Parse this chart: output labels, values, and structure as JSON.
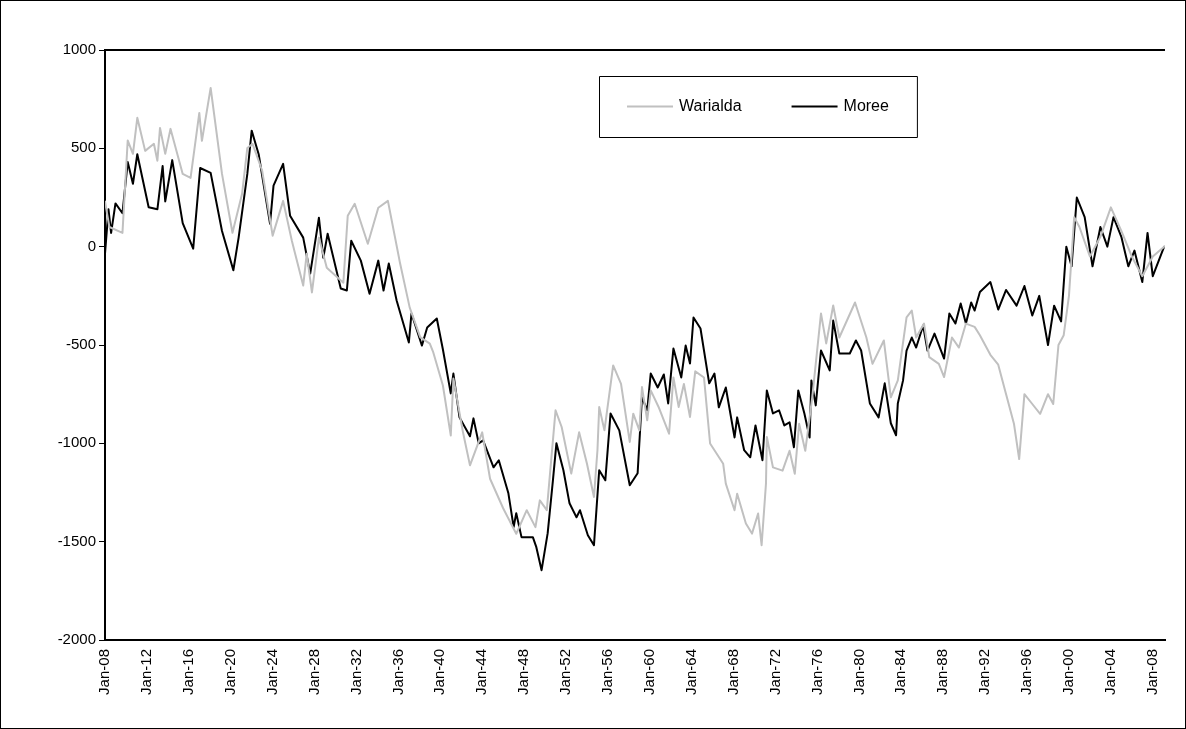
{
  "chart_data": {
    "type": "line",
    "legend": "top",
    "grid": false,
    "marker": "none",
    "line_style": "solid",
    "xlim": [
      "1908-01",
      "2009-03"
    ],
    "ylim": [
      -2000,
      1000
    ],
    "yticks": [
      -2000,
      -1500,
      -1000,
      -500,
      0,
      500,
      1000
    ],
    "xticks": [
      {
        "value": "1908-01",
        "label": "Jan-08"
      },
      {
        "value": "1912-01",
        "label": "Jan-12"
      },
      {
        "value": "1916-01",
        "label": "Jan-16"
      },
      {
        "value": "1920-01",
        "label": "Jan-20"
      },
      {
        "value": "1924-01",
        "label": "Jan-24"
      },
      {
        "value": "1928-01",
        "label": "Jan-28"
      },
      {
        "value": "1932-01",
        "label": "Jan-32"
      },
      {
        "value": "1936-01",
        "label": "Jan-36"
      },
      {
        "value": "1940-01",
        "label": "Jan-40"
      },
      {
        "value": "1944-01",
        "label": "Jan-44"
      },
      {
        "value": "1948-01",
        "label": "Jan-48"
      },
      {
        "value": "1952-01",
        "label": "Jan-52"
      },
      {
        "value": "1956-01",
        "label": "Jan-56"
      },
      {
        "value": "1960-01",
        "label": "Jan-60"
      },
      {
        "value": "1964-01",
        "label": "Jan-64"
      },
      {
        "value": "1968-01",
        "label": "Jan-68"
      },
      {
        "value": "1972-01",
        "label": "Jan-72"
      },
      {
        "value": "1976-01",
        "label": "Jan-76"
      },
      {
        "value": "1980-01",
        "label": "Jan-80"
      },
      {
        "value": "1984-01",
        "label": "Jan-84"
      },
      {
        "value": "1988-01",
        "label": "Jan-88"
      },
      {
        "value": "1992-01",
        "label": "Jan-92"
      },
      {
        "value": "1996-01",
        "label": "Jan-96"
      },
      {
        "value": "2000-01",
        "label": "Jan-00"
      },
      {
        "value": "2004-01",
        "label": "Jan-04"
      },
      {
        "value": "2008-01",
        "label": "Jan-08"
      }
    ],
    "series": [
      {
        "name": "Warialda",
        "color": "#c0c0c0",
        "x": [
          "1908-01",
          "1908-06",
          "1909-09",
          "1910-03",
          "1910-09",
          "1911-02",
          "1911-11",
          "1912-09",
          "1913-01",
          "1913-04",
          "1913-10",
          "1914-04",
          "1915-06",
          "1916-03",
          "1917-01",
          "1917-04",
          "1918-02",
          "1919-03",
          "1920-03",
          "1921-02",
          "1921-08",
          "1922-02",
          "1923-01",
          "1924-01",
          "1925-01",
          "1925-11",
          "1926-12",
          "1927-04",
          "1927-10",
          "1928-06",
          "1929-03",
          "1930-10",
          "1931-03",
          "1931-11",
          "1933-02",
          "1934-02",
          "1935-01",
          "1936-03",
          "1937-02",
          "1938-02",
          "1939-01",
          "1939-05",
          "1940-04",
          "1941-01",
          "1941-04",
          "1942-03",
          "1942-11",
          "1944-01",
          "1944-10",
          "1946-01",
          "1947-04",
          "1948-04",
          "1949-02",
          "1949-07",
          "1950-03",
          "1951-01",
          "1951-08",
          "1952-07",
          "1953-04",
          "1954-01",
          "1954-09",
          "1955-01",
          "1955-03",
          "1955-09",
          "1956-07",
          "1957-04",
          "1958-02",
          "1958-06",
          "1959-01",
          "1959-04",
          "1959-10",
          "1960-02",
          "1960-11",
          "1961-11",
          "1962-04",
          "1962-10",
          "1963-04",
          "1963-11",
          "1964-05",
          "1965-03",
          "1965-10",
          "1967-01",
          "1967-04",
          "1968-02",
          "1968-05",
          "1969-03",
          "1969-10",
          "1970-05",
          "1970-09",
          "1971-02",
          "1971-03",
          "1971-10",
          "1972-09",
          "1973-05",
          "1973-11",
          "1974-04",
          "1974-11",
          "1975-07",
          "1976-05",
          "1976-11",
          "1977-07",
          "1978-02",
          "1979-08",
          "1980-09",
          "1981-04",
          "1982-05",
          "1983-01",
          "1983-09",
          "1984-07",
          "1985-01",
          "1985-06",
          "1986-03",
          "1986-09",
          "1987-08",
          "1988-02",
          "1988-11",
          "1989-07",
          "1990-03",
          "1991-01",
          "1991-07",
          "1992-07",
          "1993-04",
          "1994-01",
          "1994-10",
          "1995-04",
          "1995-10",
          "1996-07",
          "1997-04",
          "1998-01",
          "1998-07",
          "1999-01",
          "1999-07",
          "2000-01",
          "2000-07",
          "2001-01",
          "2002-01",
          "2003-01",
          "2004-01",
          "2005-01",
          "2006-01",
          "2007-01",
          "2008-01",
          "2009-02"
        ],
        "values": [
          230,
          100,
          70,
          540,
          472,
          655,
          487,
          523,
          437,
          604,
          472,
          599,
          370,
          350,
          680,
          538,
          807,
          370,
          71,
          269,
          502,
          523,
          386,
          56,
          233,
          30,
          -198,
          -36,
          -233,
          46,
          -107,
          -183,
          157,
          218,
          15,
          198,
          233,
          -86,
          -310,
          -460,
          -493,
          -538,
          -706,
          -960,
          -670,
          -944,
          -1112,
          -944,
          -1180,
          -1330,
          -1460,
          -1340,
          -1426,
          -1290,
          -1340,
          -832,
          -917,
          -1154,
          -944,
          -1104,
          -1273,
          -1035,
          -815,
          -934,
          -604,
          -698,
          -993,
          -849,
          -934,
          -714,
          -883,
          -731,
          -815,
          -951,
          -665,
          -815,
          -698,
          -866,
          -634,
          -665,
          -1001,
          -1104,
          -1205,
          -1340,
          -1256,
          -1408,
          -1459,
          -1357,
          -1518,
          -1205,
          -968,
          -1122,
          -1139,
          -1038,
          -1155,
          -901,
          -1038,
          -766,
          -340,
          -492,
          -299,
          -462,
          -284,
          -462,
          -596,
          -477,
          -766,
          -680,
          -360,
          -325,
          -462,
          -391,
          -562,
          -596,
          -663,
          -462,
          -513,
          -391,
          -408,
          -450,
          -550,
          -600,
          -750,
          -900,
          -1080,
          -750,
          -800,
          -850,
          -750,
          -800,
          -500,
          -450,
          -250,
          150,
          100,
          -50,
          50,
          200,
          80,
          -50,
          -150,
          -50,
          0
        ]
      },
      {
        "name": "Moree",
        "color": "#000000",
        "x": [
          "1908-01",
          "1908-05",
          "1908-08",
          "1909-01",
          "1909-09",
          "1910-03",
          "1910-09",
          "1911-02",
          "1912-03",
          "1913-01",
          "1913-07",
          "1913-10",
          "1914-06",
          "1915-06",
          "1916-06",
          "1917-02",
          "1918-02",
          "1919-03",
          "1920-04",
          "1920-10",
          "1921-08",
          "1922-01",
          "1922-09",
          "1923-10",
          "1924-02",
          "1925-01",
          "1925-09",
          "1926-12",
          "1927-08",
          "1928-06",
          "1928-11",
          "1929-04",
          "1930-07",
          "1931-02",
          "1931-07",
          "1932-06",
          "1933-04",
          "1934-02",
          "1934-08",
          "1935-02",
          "1935-11",
          "1937-01",
          "1937-04",
          "1938-04",
          "1938-10",
          "1939-09",
          "1940-04",
          "1941-01",
          "1941-04",
          "1941-11",
          "1942-11",
          "1943-03",
          "1943-09",
          "1944-02",
          "1945-02",
          "1945-08",
          "1946-07",
          "1947-01",
          "1947-04",
          "1947-10",
          "1948-11",
          "1949-03",
          "1949-09",
          "1950-04",
          "1950-10",
          "1951-02",
          "1951-10",
          "1952-05",
          "1953-01",
          "1953-05",
          "1954-02",
          "1954-09",
          "1955-03",
          "1955-10",
          "1956-04",
          "1957-02",
          "1958-02",
          "1958-11",
          "1959-04",
          "1959-10",
          "1960-02",
          "1960-10",
          "1961-05",
          "1961-10",
          "1962-04",
          "1963-01",
          "1963-06",
          "1963-11",
          "1964-03",
          "1964-11",
          "1965-09",
          "1966-03",
          "1966-08",
          "1967-04",
          "1968-02",
          "1968-05",
          "1969-01",
          "1969-08",
          "1970-02",
          "1970-10",
          "1971-03",
          "1971-10",
          "1972-05",
          "1972-11",
          "1973-05",
          "1973-10",
          "1974-03",
          "1974-10",
          "1975-04",
          "1975-06",
          "1975-11",
          "1976-05",
          "1977-03",
          "1977-07",
          "1978-02",
          "1979-02",
          "1979-09",
          "1980-03",
          "1981-01",
          "1981-11",
          "1982-06",
          "1983-01",
          "1983-07",
          "1983-09",
          "1984-03",
          "1984-07",
          "1985-01",
          "1985-06",
          "1986-02",
          "1986-07",
          "1987-03",
          "1988-02",
          "1988-08",
          "1989-03",
          "1989-09",
          "1990-03",
          "1990-09",
          "1991-01",
          "1991-07",
          "1992-07",
          "1993-04",
          "1994-01",
          "1995-01",
          "1995-10",
          "1996-07",
          "1997-03",
          "1998-01",
          "1998-08",
          "1999-04",
          "1999-10",
          "2000-04",
          "2000-10",
          "2001-07",
          "2002-04",
          "2003-01",
          "2003-09",
          "2004-04",
          "2005-01",
          "2005-09",
          "2006-04",
          "2007-01",
          "2007-07",
          "2008-01",
          "2009-02"
        ],
        "values": [
          -35,
          190,
          70,
          220,
          170,
          430,
          320,
          470,
          200,
          190,
          410,
          230,
          440,
          120,
          -10,
          400,
          375,
          80,
          -120,
          45,
          370,
          590,
          470,
          117,
          310,
          421,
          157,
          46,
          -137,
          147,
          -56,
          66,
          -213,
          -223,
          30,
          -71,
          -239,
          -71,
          -223,
          -86,
          -274,
          -487,
          -340,
          -503,
          -411,
          -365,
          -523,
          -746,
          -645,
          -868,
          -964,
          -873,
          -1000,
          -985,
          -1122,
          -1086,
          -1254,
          -1426,
          -1355,
          -1477,
          -1477,
          -1528,
          -1645,
          -1457,
          -1188,
          -1000,
          -1137,
          -1305,
          -1376,
          -1340,
          -1467,
          -1518,
          -1137,
          -1188,
          -848,
          -934,
          -1213,
          -1152,
          -766,
          -832,
          -645,
          -716,
          -650,
          -797,
          -518,
          -665,
          -503,
          -594,
          -360,
          -416,
          -695,
          -645,
          -817,
          -716,
          -970,
          -868,
          -1035,
          -1071,
          -909,
          -1086,
          -731,
          -848,
          -832,
          -909,
          -893,
          -1020,
          -731,
          -848,
          -970,
          -680,
          -807,
          -528,
          -629,
          -376,
          -543,
          -543,
          -477,
          -528,
          -797,
          -868,
          -695,
          -898,
          -959,
          -797,
          -680,
          -528,
          -462,
          -513,
          -401,
          -528,
          -442,
          -569,
          -340,
          -391,
          -289,
          -391,
          -284,
          -325,
          -230,
          -180,
          -320,
          -220,
          -300,
          -200,
          -350,
          -250,
          -500,
          -300,
          -380,
          0,
          -100,
          250,
          150,
          -100,
          100,
          0,
          150,
          50,
          -100,
          -20,
          -180,
          70,
          -150,
          0
        ]
      }
    ]
  }
}
